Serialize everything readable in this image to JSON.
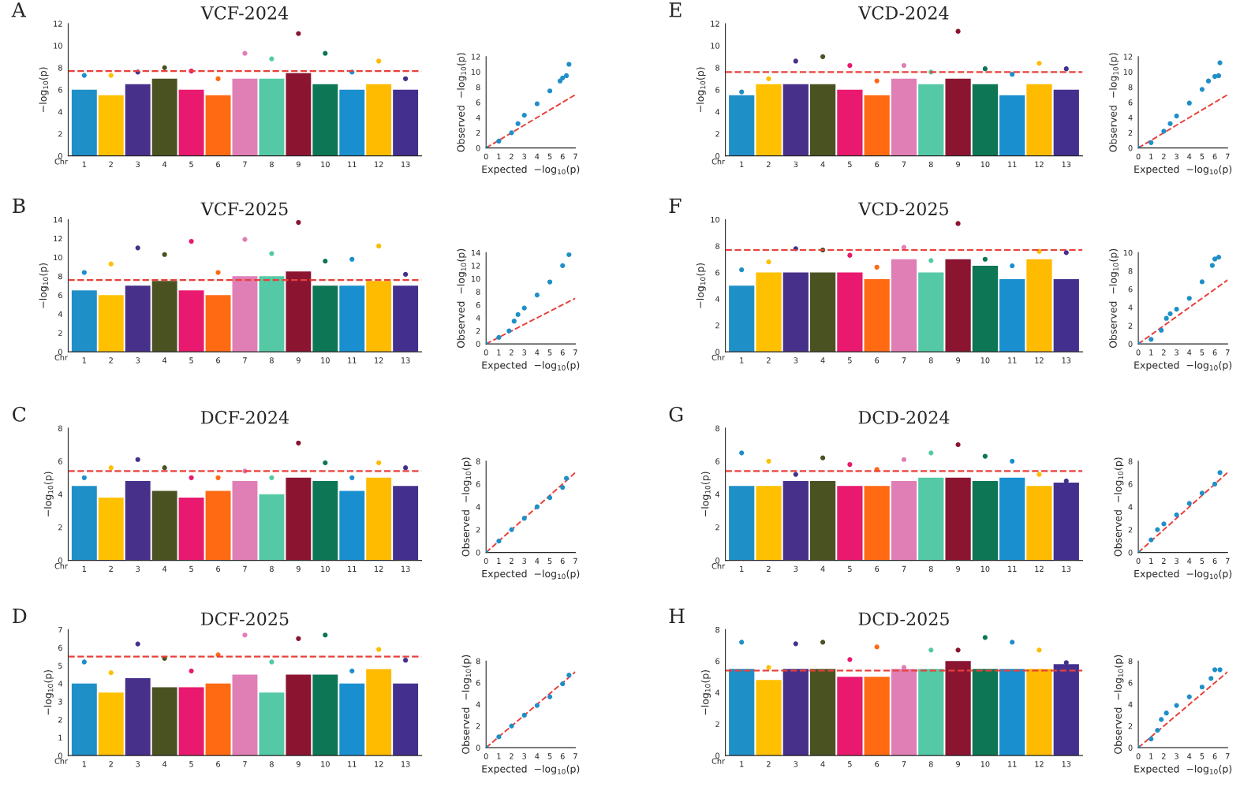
{
  "chart_data": [
    {
      "type": "bar",
      "title": "VCF-2024",
      "annotations": [
        "A"
      ],
      "xlabel": "Chr",
      "ylabel": "−log$_{10}$(p)",
      "categories": [
        "1",
        "2",
        "3",
        "4",
        "5",
        "6",
        "7",
        "8",
        "9",
        "10",
        "11",
        "12",
        "13"
      ],
      "ylim": [
        0,
        12
      ],
      "yticks": [
        0,
        2,
        4,
        6,
        8,
        10,
        12
      ],
      "ref_lines": [
        {
          "axis": "y",
          "value": 7.7,
          "color": "#e8403a",
          "line_style": "dashed"
        }
      ],
      "series": [
        {
          "colors": [
            "#1f8fc8",
            "#ffc000",
            "#46308a",
            "#4a5222",
            "#e8196e",
            "#ff6a13",
            "#e07eb6",
            "#55c9a5",
            "#8b1430",
            "#0d7654",
            "#1a8fcf",
            "#ffbb00",
            "#43308e"
          ],
          "values": [
            6.0,
            5.5,
            6.5,
            7.0,
            6.0,
            5.5,
            7.0,
            7.0,
            7.5,
            6.5,
            6.0,
            6.5,
            6.0
          ]
        },
        {
          "type": "scatter",
          "marker": "circle",
          "x": [
            "1",
            "2",
            "3",
            "4",
            "5",
            "6",
            "7",
            "8",
            "9",
            "10",
            "11",
            "12",
            "13"
          ],
          "colors": [
            "#1f8fc8",
            "#ffc000",
            "#46308a",
            "#4a5222",
            "#e8196e",
            "#ff6a13",
            "#e07eb6",
            "#55c9a5",
            "#8b1430",
            "#0d7654",
            "#1a8fcf",
            "#ffbb00",
            "#43308e"
          ],
          "values": [
            7.3,
            7.3,
            7.6,
            8.0,
            7.7,
            7.0,
            9.3,
            8.8,
            11.1,
            9.3,
            7.6,
            8.6,
            7.0
          ]
        }
      ]
    },
    {
      "type": "scatter",
      "xlabel": "Expected  −log$_{10}$(p)",
      "ylabel": "Observed  −log$_{10}$(p)",
      "xlim": [
        0,
        7
      ],
      "xticks": [
        0,
        1,
        2,
        3,
        4,
        5,
        6,
        7
      ],
      "ylim": [
        0,
        12
      ],
      "yticks": [
        0,
        2,
        4,
        6,
        8,
        10,
        12
      ],
      "series": [
        {
          "marker": "circle",
          "color": "#1f8fc8",
          "x": [
            0,
            1,
            2,
            2.5,
            3,
            4,
            5,
            5.8,
            6,
            6.3,
            6.5
          ],
          "values": [
            0,
            0.9,
            2,
            3.2,
            4.3,
            5.8,
            7.5,
            8.8,
            9.2,
            9.5,
            11
          ]
        },
        {
          "type": "line",
          "line_style": "dashed",
          "color": "#e8403a",
          "x": [
            0,
            7
          ],
          "values": [
            0,
            7
          ]
        }
      ]
    },
    {
      "type": "bar",
      "title": "VCD-2024",
      "annotations": [
        "E"
      ],
      "xlabel": "Chr",
      "ylabel": "−log$_{10}$(p)",
      "categories": [
        "1",
        "2",
        "3",
        "4",
        "5",
        "6",
        "7",
        "8",
        "9",
        "10",
        "11",
        "12",
        "13"
      ],
      "ylim": [
        0,
        12
      ],
      "yticks": [
        0,
        2,
        4,
        6,
        8,
        10,
        12
      ],
      "ref_lines": [
        {
          "axis": "y",
          "value": 7.6,
          "color": "#e8403a",
          "line_style": "dashed"
        }
      ],
      "series": [
        {
          "colors": [
            "#1f8fc8",
            "#ffc000",
            "#46308a",
            "#4a5222",
            "#e8196e",
            "#ff6a13",
            "#e07eb6",
            "#55c9a5",
            "#8b1430",
            "#0d7654",
            "#1a8fcf",
            "#ffbb00",
            "#43308e"
          ],
          "values": [
            5.5,
            6.5,
            6.5,
            6.5,
            6.0,
            5.5,
            7.0,
            6.5,
            7.0,
            6.5,
            5.5,
            6.5,
            6.0
          ]
        },
        {
          "type": "scatter",
          "marker": "circle",
          "x": [
            "1",
            "2",
            "3",
            "4",
            "5",
            "6",
            "7",
            "8",
            "9",
            "10",
            "11",
            "12",
            "13"
          ],
          "colors": [
            "#1f8fc8",
            "#ffc000",
            "#46308a",
            "#4a5222",
            "#e8196e",
            "#ff6a13",
            "#e07eb6",
            "#55c9a5",
            "#8b1430",
            "#0d7654",
            "#1a8fcf",
            "#ffbb00",
            "#43308e"
          ],
          "values": [
            5.8,
            7.0,
            8.6,
            9.0,
            8.2,
            6.8,
            8.2,
            7.6,
            11.3,
            7.9,
            7.4,
            8.4,
            7.9
          ]
        }
      ]
    },
    {
      "type": "scatter",
      "xlabel": "Expected  −log$_{10}$(p)",
      "ylabel": "Observed  −log$_{10}$(p)",
      "xlim": [
        0,
        7
      ],
      "xticks": [
        0,
        1,
        2,
        3,
        4,
        5,
        6,
        7
      ],
      "ylim": [
        0,
        12
      ],
      "yticks": [
        0,
        2,
        4,
        6,
        8,
        10,
        12
      ],
      "series": [
        {
          "marker": "circle",
          "color": "#1f8fc8",
          "x": [
            0,
            1,
            2,
            2.5,
            3,
            4,
            5,
            5.5,
            6,
            6.3,
            6.4
          ],
          "values": [
            0,
            0.7,
            2.2,
            3.2,
            4.2,
            5.9,
            7.7,
            8.8,
            9.4,
            9.5,
            11.2
          ]
        },
        {
          "type": "line",
          "line_style": "dashed",
          "color": "#e8403a",
          "x": [
            0,
            7
          ],
          "values": [
            0,
            7
          ]
        }
      ]
    },
    {
      "type": "bar",
      "title": "VCF-2025",
      "annotations": [
        "B"
      ],
      "xlabel": "Chr",
      "ylabel": "−log$_{10}$(p)",
      "categories": [
        "1",
        "2",
        "3",
        "4",
        "5",
        "6",
        "7",
        "8",
        "9",
        "10",
        "11",
        "12",
        "13"
      ],
      "ylim": [
        0,
        14
      ],
      "yticks": [
        0,
        2,
        4,
        6,
        8,
        10,
        12,
        14
      ],
      "ref_lines": [
        {
          "axis": "y",
          "value": 7.6,
          "color": "#e8403a",
          "line_style": "dashed"
        }
      ],
      "series": [
        {
          "colors": [
            "#1f8fc8",
            "#ffc000",
            "#46308a",
            "#4a5222",
            "#e8196e",
            "#ff6a13",
            "#e07eb6",
            "#55c9a5",
            "#8b1430",
            "#0d7654",
            "#1a8fcf",
            "#ffbb00",
            "#43308e"
          ],
          "values": [
            6.5,
            6.0,
            7.0,
            7.5,
            6.5,
            6.0,
            8.0,
            8.0,
            8.5,
            7.0,
            7.0,
            7.5,
            7.0
          ]
        },
        {
          "type": "scatter",
          "marker": "circle",
          "x": [
            "1",
            "2",
            "3",
            "4",
            "5",
            "6",
            "7",
            "8",
            "9",
            "10",
            "11",
            "12",
            "13"
          ],
          "colors": [
            "#1f8fc8",
            "#ffc000",
            "#46308a",
            "#4a5222",
            "#e8196e",
            "#ff6a13",
            "#e07eb6",
            "#55c9a5",
            "#8b1430",
            "#0d7654",
            "#1a8fcf",
            "#ffbb00",
            "#43308e"
          ],
          "values": [
            8.4,
            9.3,
            11.0,
            10.3,
            11.7,
            8.4,
            11.9,
            10.4,
            13.7,
            9.6,
            9.8,
            11.2,
            8.2
          ]
        }
      ]
    },
    {
      "type": "scatter",
      "xlabel": "Expected  −log$_{10}$(p)",
      "ylabel": "Observed  −log$_{10}$(p)",
      "xlim": [
        0,
        7
      ],
      "xticks": [
        0,
        1,
        2,
        3,
        4,
        5,
        6,
        7
      ],
      "ylim": [
        0,
        14
      ],
      "yticks": [
        0,
        2,
        4,
        6,
        8,
        10,
        12,
        14
      ],
      "series": [
        {
          "marker": "circle",
          "color": "#1f8fc8",
          "x": [
            0,
            1,
            1.8,
            2.2,
            2.5,
            3,
            4,
            5,
            6,
            6.5
          ],
          "values": [
            0,
            1,
            2,
            3.5,
            4.5,
            5.5,
            7.5,
            9.5,
            12,
            13.7
          ]
        },
        {
          "type": "line",
          "line_style": "dashed",
          "color": "#e8403a",
          "x": [
            0,
            7
          ],
          "values": [
            0,
            7
          ]
        }
      ]
    },
    {
      "type": "bar",
      "title": "VCD-2025",
      "annotations": [
        "F"
      ],
      "xlabel": "Chr",
      "ylabel": "−log$_{10}$(p)",
      "categories": [
        "1",
        "2",
        "3",
        "4",
        "5",
        "6",
        "7",
        "8",
        "9",
        "10",
        "11",
        "12",
        "13"
      ],
      "ylim": [
        0,
        10
      ],
      "yticks": [
        0,
        2,
        4,
        6,
        8,
        10
      ],
      "ref_lines": [
        {
          "axis": "y",
          "value": 7.7,
          "color": "#e8403a",
          "line_style": "dashed"
        }
      ],
      "series": [
        {
          "colors": [
            "#1f8fc8",
            "#ffc000",
            "#46308a",
            "#4a5222",
            "#e8196e",
            "#ff6a13",
            "#e07eb6",
            "#55c9a5",
            "#8b1430",
            "#0d7654",
            "#1a8fcf",
            "#ffbb00",
            "#43308e"
          ],
          "values": [
            5.0,
            6.0,
            6.0,
            6.0,
            6.0,
            5.5,
            7.0,
            6.0,
            7.0,
            6.5,
            5.5,
            7.0,
            5.5
          ]
        },
        {
          "type": "scatter",
          "marker": "circle",
          "x": [
            "1",
            "2",
            "3",
            "4",
            "5",
            "6",
            "7",
            "8",
            "9",
            "10",
            "11",
            "12",
            "13"
          ],
          "colors": [
            "#1f8fc8",
            "#ffc000",
            "#46308a",
            "#4a5222",
            "#e8196e",
            "#ff6a13",
            "#e07eb6",
            "#55c9a5",
            "#8b1430",
            "#0d7654",
            "#1a8fcf",
            "#ffbb00",
            "#43308e"
          ],
          "values": [
            6.2,
            6.8,
            7.8,
            7.7,
            7.3,
            6.4,
            7.9,
            6.9,
            9.7,
            7.0,
            6.5,
            7.6,
            7.5
          ]
        }
      ]
    },
    {
      "type": "scatter",
      "xlabel": "Expected  −log$_{10}$(p)",
      "ylabel": "Observed  −log$_{10}$(p)",
      "xlim": [
        0,
        7
      ],
      "xticks": [
        0,
        1,
        2,
        3,
        4,
        5,
        6,
        7
      ],
      "ylim": [
        0,
        10
      ],
      "yticks": [
        0,
        2,
        4,
        6,
        8,
        10
      ],
      "series": [
        {
          "marker": "circle",
          "color": "#1f8fc8",
          "x": [
            0,
            1,
            1.8,
            2.2,
            2.5,
            3,
            4,
            5,
            5.8,
            6,
            6.3
          ],
          "values": [
            0,
            0.5,
            1.5,
            2.8,
            3.3,
            3.8,
            5,
            6.8,
            8.6,
            9.3,
            9.5
          ]
        },
        {
          "type": "line",
          "line_style": "dashed",
          "color": "#e8403a",
          "x": [
            0,
            7
          ],
          "values": [
            0,
            7
          ]
        }
      ]
    },
    {
      "type": "bar",
      "title": "DCF-2024",
      "annotations": [
        "C"
      ],
      "xlabel": "Chr",
      "ylabel": "−log$_{10}$(p)",
      "categories": [
        "1",
        "2",
        "3",
        "4",
        "5",
        "6",
        "7",
        "8",
        "9",
        "10",
        "11",
        "12",
        "13"
      ],
      "ylim": [
        0,
        8
      ],
      "yticks": [
        0,
        2,
        4,
        6,
        8
      ],
      "ref_lines": [
        {
          "axis": "y",
          "value": 5.4,
          "color": "#e8403a",
          "line_style": "dashed"
        }
      ],
      "series": [
        {
          "colors": [
            "#1f8fc8",
            "#ffc000",
            "#46308a",
            "#4a5222",
            "#e8196e",
            "#ff6a13",
            "#e07eb6",
            "#55c9a5",
            "#8b1430",
            "#0d7654",
            "#1a8fcf",
            "#ffbb00",
            "#43308e"
          ],
          "values": [
            4.5,
            3.8,
            4.8,
            4.2,
            3.8,
            4.2,
            4.8,
            4.0,
            5.0,
            4.8,
            4.2,
            5.0,
            4.5
          ]
        },
        {
          "type": "scatter",
          "marker": "circle",
          "x": [
            "1",
            "2",
            "3",
            "4",
            "5",
            "6",
            "7",
            "8",
            "9",
            "10",
            "11",
            "12",
            "13"
          ],
          "colors": [
            "#1f8fc8",
            "#ffc000",
            "#46308a",
            "#4a5222",
            "#e8196e",
            "#ff6a13",
            "#e07eb6",
            "#55c9a5",
            "#8b1430",
            "#0d7654",
            "#1a8fcf",
            "#ffbb00",
            "#43308e"
          ],
          "values": [
            5.0,
            5.6,
            6.1,
            5.6,
            5.0,
            5.0,
            5.4,
            5.0,
            7.1,
            5.9,
            5.0,
            5.9,
            5.6
          ]
        }
      ]
    },
    {
      "type": "scatter",
      "xlabel": "Expected  −log$_{10}$(p)",
      "ylabel": "Observed  −log$_{10}$(p)",
      "xlim": [
        0,
        7
      ],
      "xticks": [
        0,
        1,
        2,
        3,
        4,
        5,
        6,
        7
      ],
      "ylim": [
        0,
        8
      ],
      "yticks": [
        0,
        2,
        4,
        6,
        8
      ],
      "series": [
        {
          "marker": "circle",
          "color": "#1f8fc8",
          "x": [
            0,
            1,
            2,
            3,
            4,
            5,
            6,
            6.3
          ],
          "values": [
            0,
            1,
            2,
            3,
            4,
            4.8,
            5.7,
            6.5
          ]
        },
        {
          "type": "line",
          "line_style": "dashed",
          "color": "#e8403a",
          "x": [
            0,
            7
          ],
          "values": [
            0,
            7
          ]
        }
      ]
    },
    {
      "type": "bar",
      "title": "DCD-2024",
      "annotations": [
        "G"
      ],
      "xlabel": "Chr",
      "ylabel": "−log$_{10}$(p)",
      "categories": [
        "1",
        "2",
        "3",
        "4",
        "5",
        "6",
        "7",
        "8",
        "9",
        "10",
        "11",
        "12",
        "13"
      ],
      "ylim": [
        0,
        8
      ],
      "yticks": [
        0,
        2,
        4,
        6,
        8
      ],
      "ref_lines": [
        {
          "axis": "y",
          "value": 5.4,
          "color": "#e8403a",
          "line_style": "dashed"
        }
      ],
      "series": [
        {
          "colors": [
            "#1f8fc8",
            "#ffc000",
            "#46308a",
            "#4a5222",
            "#e8196e",
            "#ff6a13",
            "#e07eb6",
            "#55c9a5",
            "#8b1430",
            "#0d7654",
            "#1a8fcf",
            "#ffbb00",
            "#43308e"
          ],
          "values": [
            4.5,
            4.5,
            4.8,
            4.8,
            4.5,
            4.5,
            4.8,
            5.0,
            5.0,
            4.8,
            5.0,
            4.5,
            4.7
          ]
        },
        {
          "type": "scatter",
          "marker": "circle",
          "x": [
            "1",
            "2",
            "3",
            "4",
            "5",
            "6",
            "7",
            "8",
            "9",
            "10",
            "11",
            "12",
            "13"
          ],
          "colors": [
            "#1f8fc8",
            "#ffc000",
            "#46308a",
            "#4a5222",
            "#e8196e",
            "#ff6a13",
            "#e07eb6",
            "#55c9a5",
            "#8b1430",
            "#0d7654",
            "#1a8fcf",
            "#ffbb00",
            "#43308e"
          ],
          "values": [
            6.5,
            6.0,
            5.2,
            6.2,
            5.8,
            5.5,
            6.1,
            6.5,
            7.0,
            6.3,
            6.0,
            5.2,
            4.8
          ]
        }
      ]
    },
    {
      "type": "scatter",
      "xlabel": "Expected  −log$_{10}$(p)",
      "ylabel": "Observed  −log$_{10}$(p)",
      "xlim": [
        0,
        7
      ],
      "xticks": [
        0,
        1,
        2,
        3,
        4,
        5,
        6,
        7
      ],
      "ylim": [
        0,
        8
      ],
      "yticks": [
        0,
        2,
        4,
        6,
        8
      ],
      "series": [
        {
          "marker": "circle",
          "color": "#1f8fc8",
          "x": [
            0,
            1,
            1.5,
            2,
            3,
            4,
            5,
            6,
            6.4
          ],
          "values": [
            0,
            1.1,
            2,
            2.5,
            3.3,
            4.3,
            5.2,
            6.0,
            7.0
          ]
        },
        {
          "type": "line",
          "line_style": "dashed",
          "color": "#e8403a",
          "x": [
            0,
            7
          ],
          "values": [
            0,
            7
          ]
        }
      ]
    },
    {
      "type": "bar",
      "title": "DCF-2025",
      "annotations": [
        "D"
      ],
      "xlabel": "Chr",
      "ylabel": "−log$_{10}$(p)",
      "categories": [
        "1",
        "2",
        "3",
        "4",
        "5",
        "6",
        "7",
        "8",
        "9",
        "10",
        "11",
        "12",
        "13"
      ],
      "ylim": [
        0,
        7
      ],
      "yticks": [
        0,
        1,
        2,
        3,
        4,
        5,
        6,
        7
      ],
      "ref_lines": [
        {
          "axis": "y",
          "value": 5.5,
          "color": "#e8403a",
          "line_style": "dashed"
        }
      ],
      "series": [
        {
          "colors": [
            "#1f8fc8",
            "#ffc000",
            "#46308a",
            "#4a5222",
            "#e8196e",
            "#ff6a13",
            "#e07eb6",
            "#55c9a5",
            "#8b1430",
            "#0d7654",
            "#1a8fcf",
            "#ffbb00",
            "#43308e"
          ],
          "values": [
            4.0,
            3.5,
            4.3,
            3.8,
            3.8,
            4.0,
            4.5,
            3.5,
            4.5,
            4.5,
            4.0,
            4.8,
            4.0
          ]
        },
        {
          "type": "scatter",
          "marker": "circle",
          "x": [
            "1",
            "2",
            "3",
            "4",
            "5",
            "6",
            "7",
            "8",
            "9",
            "10",
            "11",
            "12",
            "13"
          ],
          "colors": [
            "#1f8fc8",
            "#ffc000",
            "#46308a",
            "#4a5222",
            "#e8196e",
            "#ff6a13",
            "#e07eb6",
            "#55c9a5",
            "#8b1430",
            "#0d7654",
            "#1a8fcf",
            "#ffbb00",
            "#43308e"
          ],
          "values": [
            5.2,
            4.6,
            6.2,
            5.4,
            4.7,
            5.6,
            6.7,
            5.2,
            6.5,
            6.7,
            4.7,
            5.9,
            5.3
          ]
        }
      ]
    },
    {
      "type": "scatter",
      "xlabel": "Expected  −log$_{10}$(p)",
      "ylabel": "Observed  −log$_{10}$(p)",
      "xlim": [
        0,
        7
      ],
      "xticks": [
        0,
        1,
        2,
        3,
        4,
        5,
        6,
        7
      ],
      "ylim": [
        0,
        8
      ],
      "yticks": [
        0,
        2,
        4,
        6,
        8
      ],
      "series": [
        {
          "marker": "circle",
          "color": "#1f8fc8",
          "x": [
            0,
            1,
            2,
            3,
            4,
            5,
            6,
            6.5
          ],
          "values": [
            0,
            1,
            2,
            3,
            3.9,
            4.7,
            5.9,
            6.7
          ]
        },
        {
          "type": "line",
          "line_style": "dashed",
          "color": "#e8403a",
          "x": [
            0,
            7
          ],
          "values": [
            0,
            7
          ]
        }
      ]
    },
    {
      "type": "bar",
      "title": "DCD-2025",
      "annotations": [
        "H"
      ],
      "xlabel": "Chr",
      "ylabel": "−log$_{10}$(p)",
      "categories": [
        "1",
        "2",
        "3",
        "4",
        "5",
        "6",
        "7",
        "8",
        "9",
        "10",
        "11",
        "12",
        "13"
      ],
      "ylim": [
        0,
        8
      ],
      "yticks": [
        0,
        2,
        4,
        6,
        8
      ],
      "ref_lines": [
        {
          "axis": "y",
          "value": 5.4,
          "color": "#e8403a",
          "line_style": "dashed"
        }
      ],
      "series": [
        {
          "colors": [
            "#1f8fc8",
            "#ffc000",
            "#46308a",
            "#4a5222",
            "#e8196e",
            "#ff6a13",
            "#e07eb6",
            "#55c9a5",
            "#8b1430",
            "#0d7654",
            "#1a8fcf",
            "#ffbb00",
            "#43308e"
          ],
          "values": [
            5.5,
            4.8,
            5.5,
            5.5,
            5.0,
            5.0,
            5.5,
            5.5,
            6.0,
            5.5,
            5.5,
            5.5,
            5.8
          ]
        },
        {
          "type": "scatter",
          "marker": "circle",
          "x": [
            "1",
            "2",
            "3",
            "4",
            "5",
            "6",
            "7",
            "8",
            "9",
            "10",
            "11",
            "12",
            "13"
          ],
          "colors": [
            "#1f8fc8",
            "#ffc000",
            "#46308a",
            "#4a5222",
            "#e8196e",
            "#ff6a13",
            "#e07eb6",
            "#55c9a5",
            "#8b1430",
            "#0d7654",
            "#1a8fcf",
            "#ffbb00",
            "#43308e"
          ],
          "values": [
            7.2,
            5.6,
            7.1,
            7.2,
            6.1,
            6.9,
            5.6,
            6.7,
            6.7,
            7.5,
            7.2,
            6.7,
            5.9
          ]
        }
      ]
    },
    {
      "type": "scatter",
      "xlabel": "Expected  −log$_{10}$(p)",
      "ylabel": "Observed  −log$_{10}$(p)",
      "xlim": [
        0,
        7
      ],
      "xticks": [
        0,
        1,
        2,
        3,
        4,
        5,
        6,
        7
      ],
      "ylim": [
        0,
        8
      ],
      "yticks": [
        0,
        2,
        4,
        6,
        8
      ],
      "series": [
        {
          "marker": "circle",
          "color": "#1f8fc8",
          "x": [
            0,
            1,
            1.5,
            1.8,
            2.2,
            3,
            4,
            5,
            5.7,
            6,
            6.4
          ],
          "values": [
            0,
            0.8,
            1.6,
            2.6,
            3.2,
            3.9,
            4.7,
            5.6,
            6.4,
            7.2,
            7.2
          ]
        },
        {
          "type": "line",
          "line_style": "dashed",
          "color": "#e8403a",
          "x": [
            0,
            7
          ],
          "values": [
            0,
            7
          ]
        }
      ]
    }
  ]
}
